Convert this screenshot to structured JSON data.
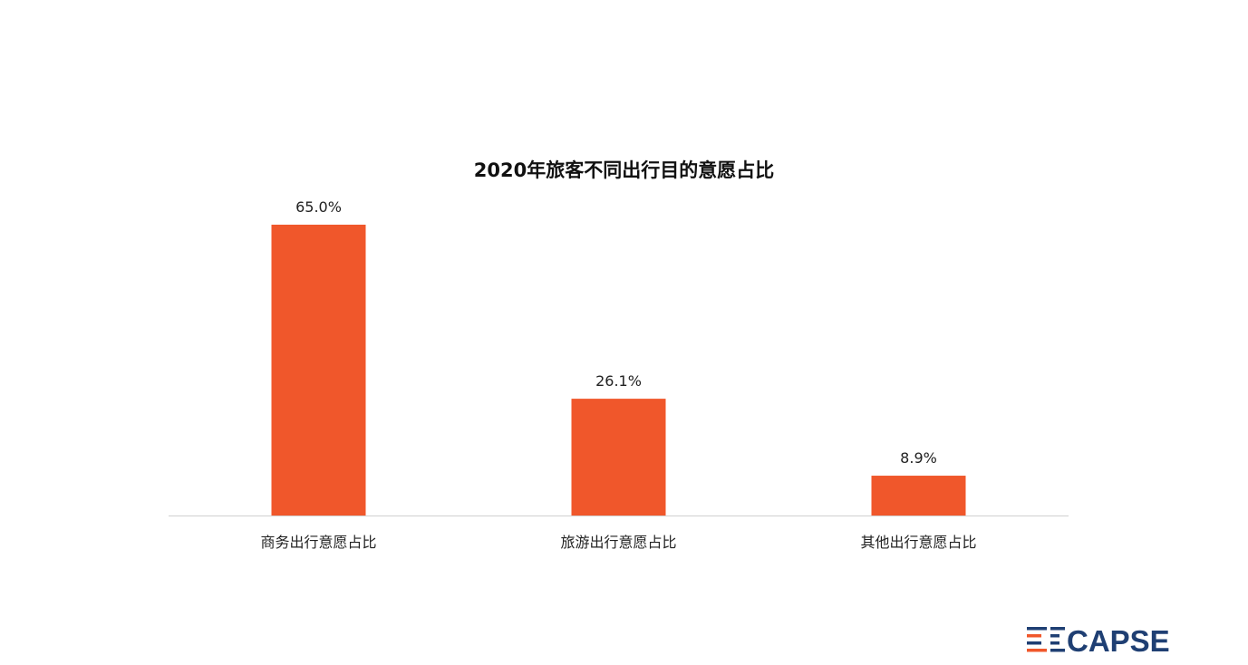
{
  "chart_data": {
    "type": "bar",
    "title": "2020年旅客不同出行目的意愿占比",
    "categories": [
      "商务出行意愿占比",
      "旅游出行意愿占比",
      "其他出行意愿占比"
    ],
    "values": [
      65.0,
      26.1,
      8.9
    ],
    "value_labels": [
      "65.0%",
      "26.1%",
      "8.9%"
    ],
    "unit": "%",
    "ylim": [
      0,
      65
    ],
    "grid": false,
    "legend": "none",
    "bar_color": "#F0572B",
    "axis_color": "#D0D0D0"
  },
  "logo": {
    "text": "CAPSE",
    "color": "#1F3F73",
    "accent_color": "#F0572B"
  }
}
